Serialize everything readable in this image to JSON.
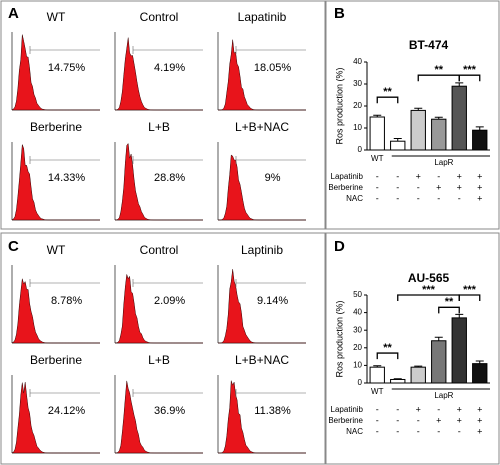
{
  "flow_panels": [
    {
      "letter": "A",
      "samples": [
        {
          "name": "WT",
          "percent": "14.75%"
        },
        {
          "name": "Control",
          "percent": "4.19%"
        },
        {
          "name": "Lapatinib",
          "percent": "18.05%"
        },
        {
          "name": "Berberine",
          "percent": "14.33%"
        },
        {
          "name": "L+B",
          "percent": "28.8%"
        },
        {
          "name": "L+B+NAC",
          "percent": "9%"
        }
      ]
    },
    {
      "letter": "C",
      "samples": [
        {
          "name": "WT",
          "percent": "8.78%"
        },
        {
          "name": "Control",
          "percent": "2.09%"
        },
        {
          "name": "Laptinib",
          "percent": "9.14%"
        },
        {
          "name": "Berberine",
          "percent": "24.12%"
        },
        {
          "name": "L+B",
          "percent": "36.9%"
        },
        {
          "name": "L+B+NAC",
          "percent": "11.38%"
        }
      ]
    }
  ],
  "chart_data": [
    {
      "type": "bar",
      "panel_label": "B",
      "title": "BT-474",
      "y_label": "Ros production (%)",
      "values": [
        15,
        4,
        18,
        14,
        29,
        9
      ],
      "errors": [
        0.8,
        1.2,
        1,
        0.9,
        1.5,
        1.5
      ],
      "colors": [
        "#ffffff",
        "#ffffff",
        "#cccccc",
        "#999999",
        "#555555",
        "#111111"
      ],
      "ylim": [
        0,
        40
      ],
      "yticks": [
        0,
        10,
        20,
        30,
        40
      ],
      "groups": [
        "WT",
        "LapR"
      ],
      "significance": [
        "**",
        "**",
        "***"
      ],
      "treatments": [
        {
          "label": "Lapatinib",
          "signs": [
            "-",
            "-",
            "+",
            "-",
            "+",
            "+"
          ]
        },
        {
          "label": "Berberine",
          "signs": [
            "-",
            "-",
            "-",
            "+",
            "+",
            "+"
          ]
        },
        {
          "label": "NAC",
          "signs": [
            "-",
            "-",
            "-",
            "-",
            "-",
            "+"
          ]
        }
      ]
    },
    {
      "type": "bar",
      "panel_label": "D",
      "title": "AU-565",
      "y_label": "Ros production (%)",
      "values": [
        9,
        2,
        9,
        24,
        37,
        11
      ],
      "errors": [
        0.8,
        0.4,
        0.6,
        2,
        2,
        1.5
      ],
      "colors": [
        "#ffffff",
        "#ffffff",
        "#cccccc",
        "#777777",
        "#333333",
        "#111111"
      ],
      "ylim": [
        0,
        50
      ],
      "yticks": [
        0,
        10,
        20,
        30,
        40,
        50
      ],
      "groups": [
        "WT",
        "LapR"
      ],
      "significance": [
        "**",
        "***",
        "**",
        "***"
      ],
      "treatments": [
        {
          "label": "Lapatinib",
          "signs": [
            "-",
            "-",
            "+",
            "-",
            "+",
            "+"
          ]
        },
        {
          "label": "Berberine",
          "signs": [
            "-",
            "-",
            "-",
            "+",
            "+",
            "+"
          ]
        },
        {
          "label": "NAC",
          "signs": [
            "-",
            "-",
            "-",
            "-",
            "-",
            "+"
          ]
        }
      ]
    }
  ]
}
